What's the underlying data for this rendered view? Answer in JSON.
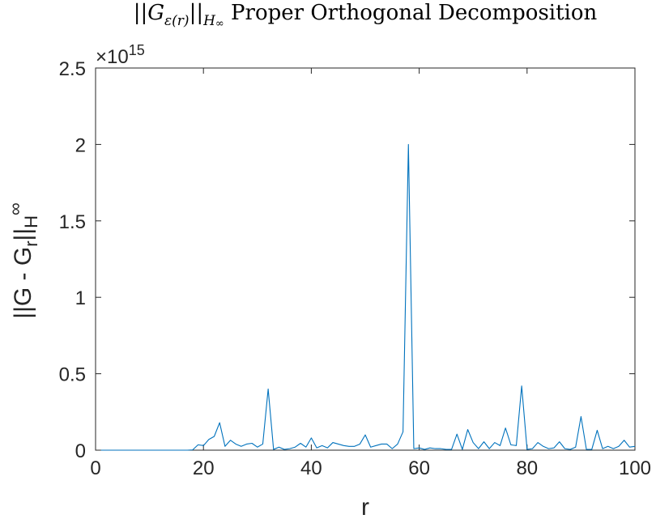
{
  "chart_data": {
    "type": "line",
    "title": {
      "pre": "||",
      "G": "G",
      "sub_eps": "ε",
      "sub_r": "(r)",
      "mid": "||",
      "H": "H",
      "sub_inf": "∞",
      "rest": " Proper Orthogonal Decomposition"
    },
    "xlabel": "r",
    "ylabel": {
      "main": "||G - G",
      "sub_r": "r",
      "bars": "||",
      "sub_H": "H",
      "sub_inf": "∞"
    },
    "y_exponent": {
      "base": "×10",
      "power": "15"
    },
    "xlim": [
      0,
      100
    ],
    "ylim": [
      0,
      2.5
    ],
    "x_ticks": [
      0,
      20,
      40,
      60,
      80,
      100
    ],
    "x_tick_labels": [
      "0",
      "20",
      "40",
      "60",
      "80",
      "100"
    ],
    "y_ticks": [
      0,
      0.5,
      1,
      1.5,
      2,
      2.5
    ],
    "y_tick_labels": [
      "0",
      "0.5",
      "1",
      "1.5",
      "2",
      "2.5"
    ],
    "grid": false,
    "line_color": "#0072BD",
    "series": [
      {
        "x": [
          1,
          2,
          3,
          4,
          5,
          6,
          7,
          8,
          9,
          10,
          11,
          12,
          13,
          14,
          15,
          16,
          17,
          18,
          19,
          20,
          21,
          22,
          23,
          24,
          25,
          26,
          27,
          28,
          29,
          30,
          31,
          32,
          33,
          34,
          35,
          36,
          37,
          38,
          39,
          40,
          41,
          42,
          43,
          44,
          45,
          46,
          47,
          48,
          49,
          50,
          51,
          52,
          53,
          54,
          55,
          56,
          57,
          58,
          59,
          60,
          61,
          62,
          63,
          64,
          65,
          66,
          67,
          68,
          69,
          70,
          71,
          72,
          73,
          74,
          75,
          76,
          77,
          78,
          79,
          80,
          81,
          82,
          83,
          84,
          85,
          86,
          87,
          88,
          89,
          90,
          91,
          92,
          93,
          94,
          95,
          96,
          97,
          98,
          99,
          100
        ],
        "y": [
          0,
          0,
          0,
          0,
          0,
          0,
          0,
          0,
          0,
          0,
          0,
          0,
          0,
          0,
          0,
          0,
          0,
          0.002,
          0.035,
          0.03,
          0.07,
          0.09,
          0.18,
          0.025,
          0.065,
          0.04,
          0.025,
          0.04,
          0.045,
          0.02,
          0.04,
          0.4,
          0.005,
          0.02,
          0.005,
          0.01,
          0.02,
          0.045,
          0.02,
          0.08,
          0.015,
          0.03,
          0.015,
          0.05,
          0.04,
          0.03,
          0.025,
          0.025,
          0.04,
          0.1,
          0.02,
          0.03,
          0.04,
          0.04,
          0.01,
          0.04,
          0.12,
          2.0,
          0.01,
          0.015,
          0.005,
          0.015,
          0.01,
          0.01,
          0.005,
          0.005,
          0.105,
          0.005,
          0.135,
          0.05,
          0.01,
          0.055,
          0.01,
          0.05,
          0.03,
          0.145,
          0.035,
          0.03,
          0.42,
          0.005,
          0.01,
          0.05,
          0.025,
          0.01,
          0.015,
          0.055,
          0.01,
          0.005,
          0.02,
          0.22,
          0.005,
          0.005,
          0.13,
          0.01,
          0.025,
          0.01,
          0.025,
          0.065,
          0.02,
          0.025
        ]
      }
    ]
  }
}
